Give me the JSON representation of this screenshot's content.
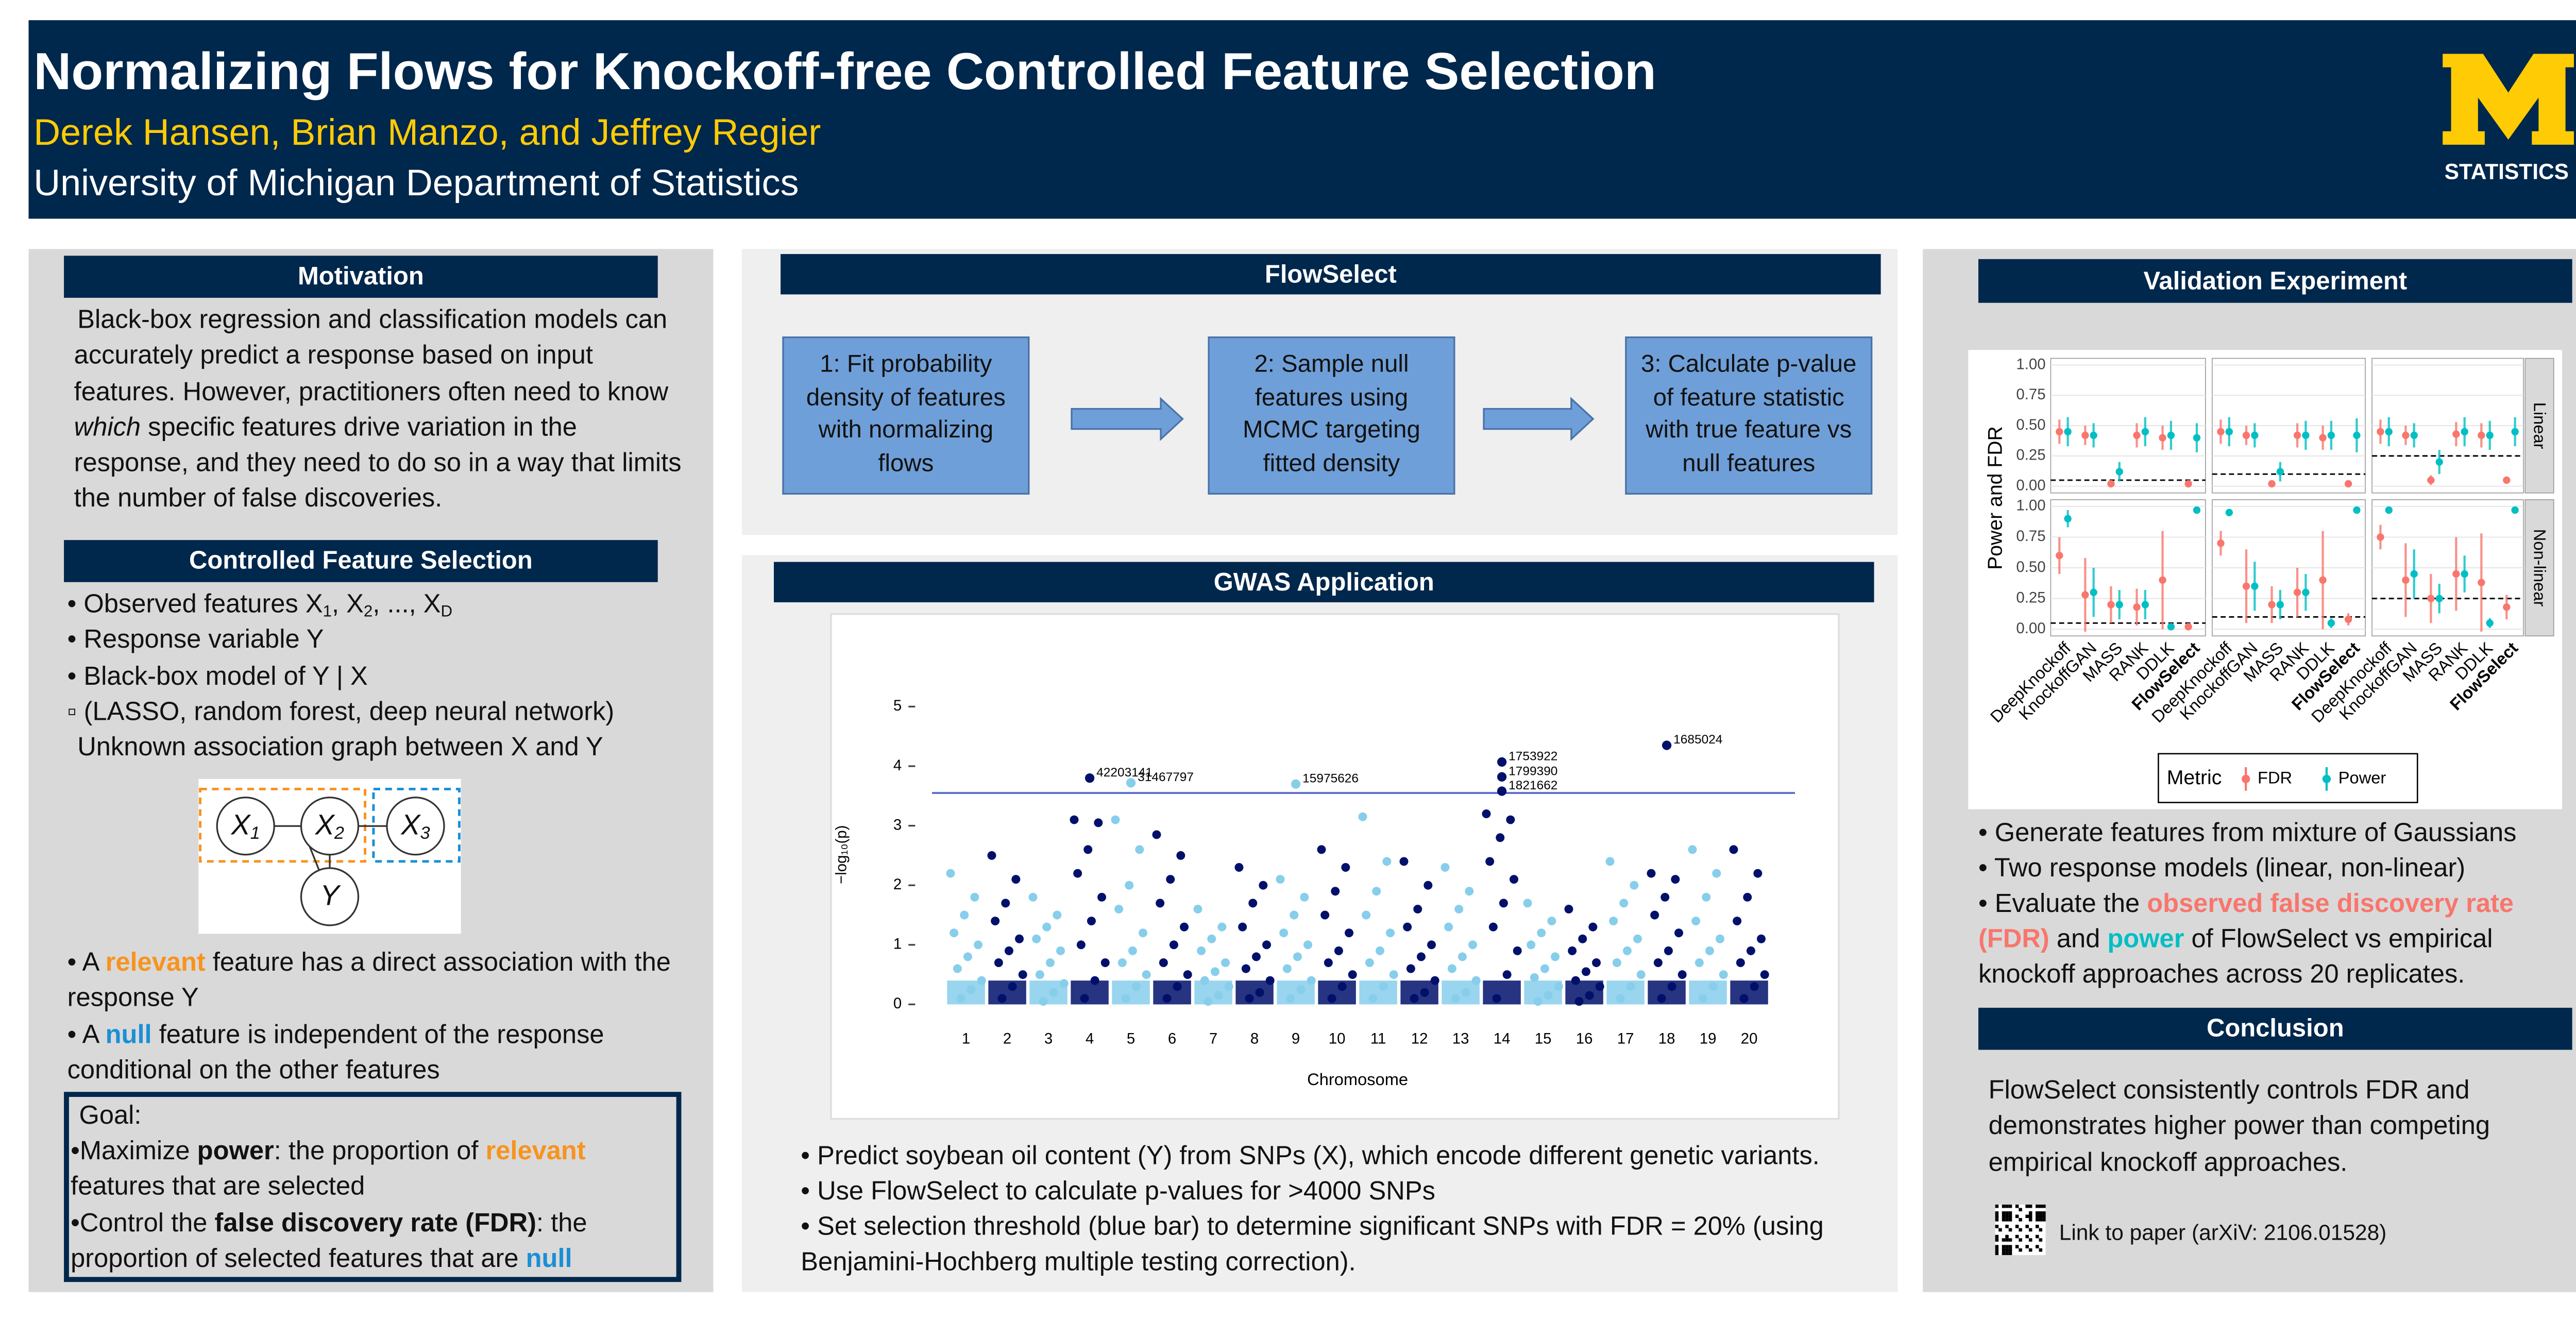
{
  "header": {
    "title": "Normalizing Flows for Knockoff-free Controlled Feature Selection",
    "authors": "Derek Hansen, Brian Manzo, and Jeffrey Regier",
    "affiliation": "University of Michigan Department of Statistics",
    "logo_text": "STATISTICS"
  },
  "motivation": {
    "heading": "Motivation",
    "text": [
      {
        "text": "Black-box regression and classification models can accurately predict a response based on input features. However, practitioners often need to know "
      },
      {
        "text": "which",
        "style": "i"
      },
      {
        "text": " specific features drive variation in the response, and they need to do so in a way that limits the number of false discoveries."
      }
    ]
  },
  "controlled": {
    "heading": "Controlled Feature Selection",
    "items": [
      [
        {
          "text": "• Observed features X"
        },
        {
          "text": "1",
          "style": "sub"
        },
        {
          "text": ", X"
        },
        {
          "text": "2",
          "style": "sub"
        },
        {
          "text": ", ..., X"
        },
        {
          "text": "D",
          "style": "sub"
        }
      ],
      [
        {
          "text": "• Response variable Y"
        }
      ],
      [
        {
          "text": "• Black-box model of Y | X"
        }
      ],
      [
        {
          "text": "▫ (LASSO, random forest, deep neural network)"
        }
      ],
      [
        {
          "text": "Unknown association graph between X and Y"
        }
      ]
    ]
  },
  "diagram": {
    "nodes": [
      [
        {
          "text": "X"
        },
        {
          "text": "1",
          "style": "sub"
        }
      ],
      [
        {
          "text": "X"
        },
        {
          "text": "2",
          "style": "sub"
        }
      ],
      [
        {
          "text": "X"
        },
        {
          "text": "3",
          "style": "sub"
        }
      ],
      [
        {
          "text": "Y"
        }
      ]
    ]
  },
  "relevance": {
    "items": [
      [
        {
          "text": "• A "
        },
        {
          "text": "relevant",
          "style": "orange"
        },
        {
          "text": " feature has a direct association with the response Y"
        }
      ],
      [
        {
          "text": "• A "
        },
        {
          "text": "null",
          "style": "blue"
        },
        {
          "text": " feature is independent of the response conditional on the other features"
        }
      ]
    ]
  },
  "goal": {
    "heading": "Goal:",
    "items": [
      [
        {
          "text": "•Maximize "
        },
        {
          "text": "power",
          "style": "b"
        },
        {
          "text": ": the proportion of "
        },
        {
          "text": "relevant",
          "style": "orange"
        },
        {
          "text": " features that are selected"
        }
      ],
      [
        {
          "text": "•Control the "
        },
        {
          "text": "false discovery rate (FDR)",
          "style": "b"
        },
        {
          "text": ": the proportion of selected features that are "
        },
        {
          "text": "null",
          "style": "blue"
        }
      ]
    ]
  },
  "flowselect": {
    "heading": "FlowSelect",
    "steps": [
      "1: Fit probability density of features with normalizing flows",
      "2: Sample null features using MCMC targeting fitted density",
      "3: Calculate p-value of feature statistic with true feature vs null features"
    ]
  },
  "gwas": {
    "heading": "GWAS Application",
    "plot": {
      "type": "manhattan",
      "ylabel": "−log₁₀(p)",
      "xlabel": "Chromosome",
      "categories": [
        "1",
        "2",
        "3",
        "4",
        "5",
        "6",
        "7",
        "8",
        "9",
        "10",
        "11",
        "12",
        "13",
        "14",
        "15",
        "16",
        "17",
        "18",
        "19",
        "20"
      ],
      "colors": [
        "#87ceeb",
        "#00106b"
      ],
      "threshold": 3.55,
      "threshold_color": "#5b6fd6",
      "ylim": [
        0,
        5
      ],
      "yticks": [
        0,
        1,
        2,
        3,
        4,
        5
      ],
      "values": [
        [
          2.2,
          1.8,
          1.5,
          1.2,
          1.0,
          0.8,
          0.6,
          0.4,
          0.25,
          0.1
        ],
        [
          2.5,
          2.1,
          1.7,
          1.4,
          1.1,
          0.9,
          0.7,
          0.5,
          0.3,
          0.1
        ],
        [
          1.8,
          1.5,
          1.3,
          1.1,
          0.9,
          0.7,
          0.5,
          0.35,
          0.2,
          0.05
        ],
        [
          3.1,
          3.05,
          2.6,
          2.2,
          1.8,
          1.4,
          1.0,
          0.7,
          0.4,
          0.1
        ],
        [
          3.1,
          2.6,
          2.0,
          1.6,
          1.2,
          0.9,
          0.7,
          0.5,
          0.3,
          0.1
        ],
        [
          2.85,
          2.5,
          2.1,
          1.7,
          1.3,
          1.0,
          0.7,
          0.5,
          0.3,
          0.1
        ],
        [
          1.6,
          1.3,
          1.1,
          0.9,
          0.7,
          0.55,
          0.4,
          0.3,
          0.15,
          0.05
        ],
        [
          2.3,
          2.0,
          1.7,
          1.3,
          1.0,
          0.8,
          0.6,
          0.4,
          0.2,
          0.1
        ],
        [
          2.1,
          1.8,
          1.5,
          1.2,
          1.0,
          0.8,
          0.6,
          0.4,
          0.25,
          0.1
        ],
        [
          2.6,
          2.3,
          1.9,
          1.5,
          1.2,
          0.9,
          0.7,
          0.5,
          0.3,
          0.1
        ],
        [
          3.15,
          2.4,
          1.9,
          1.5,
          1.2,
          0.9,
          0.7,
          0.5,
          0.3,
          0.1
        ],
        [
          2.4,
          2.0,
          1.6,
          1.3,
          1.0,
          0.8,
          0.6,
          0.4,
          0.2,
          0.1
        ],
        [
          2.3,
          1.9,
          1.6,
          1.3,
          1.0,
          0.8,
          0.6,
          0.4,
          0.2,
          0.1
        ],
        [
          3.2,
          3.1,
          2.8,
          2.4,
          2.1,
          1.7,
          1.3,
          0.9,
          0.5,
          0.1
        ],
        [
          1.7,
          1.4,
          1.2,
          1.0,
          0.8,
          0.6,
          0.45,
          0.3,
          0.15,
          0.05
        ],
        [
          1.6,
          1.3,
          1.1,
          0.9,
          0.7,
          0.55,
          0.4,
          0.3,
          0.15,
          0.05
        ],
        [
          2.4,
          2.0,
          1.7,
          1.4,
          1.1,
          0.9,
          0.7,
          0.5,
          0.3,
          0.1
        ],
        [
          2.2,
          2.1,
          1.8,
          1.5,
          1.2,
          0.9,
          0.7,
          0.5,
          0.3,
          0.1
        ],
        [
          2.6,
          2.2,
          1.8,
          1.4,
          1.1,
          0.9,
          0.7,
          0.5,
          0.3,
          0.1
        ],
        [
          2.6,
          2.2,
          1.8,
          1.4,
          1.1,
          0.9,
          0.7,
          0.5,
          0.3,
          0.1
        ]
      ],
      "annotations": [
        {
          "label": "42203141",
          "chromosome": "4",
          "value": 3.8
        },
        {
          "label": "31467797",
          "chromosome": "5",
          "value": 3.72
        },
        {
          "label": "15975626",
          "chromosome": "9",
          "value": 3.7
        },
        {
          "label": "1753922",
          "chromosome": "14",
          "value": 4.07
        },
        {
          "label": "1799390",
          "chromosome": "14",
          "value": 3.82
        },
        {
          "label": "1821662",
          "chromosome": "14",
          "value": 3.58
        },
        {
          "label": "1685024",
          "chromosome": "18",
          "value": 4.35
        }
      ]
    },
    "bullets": [
      [
        {
          "text": "• Predict soybean oil content (Y) from SNPs (X), which encode different genetic variants."
        }
      ],
      [
        {
          "text": "• Use FlowSelect to calculate p-values for >4000 SNPs"
        }
      ],
      [
        {
          "text": "• Set selection threshold (blue bar) to determine significant SNPs with FDR = 20% (using Benjamini-Hochberg multiple testing correction)."
        }
      ]
    ]
  },
  "validation": {
    "heading": "Validation Experiment",
    "plot": {
      "type": "dot-errorbar",
      "ylabel": "Power and FDR",
      "methods": [
        "DeepKnockoff",
        "KnockoffGAN",
        "MASS",
        "RANK",
        "DDLK",
        "FlowSelect"
      ],
      "ylim": [
        0,
        1
      ],
      "yticks": [
        {
          "value": 0,
          "label": "0.00"
        },
        {
          "value": 0.25,
          "label": "0.25"
        },
        {
          "value": 0.5,
          "label": "0.50"
        },
        {
          "value": 0.75,
          "label": "0.75"
        },
        {
          "value": 1,
          "label": "1.00"
        }
      ],
      "legend_title": "Metric",
      "metrics": [
        {
          "name": "FDR",
          "color": "#f8766d"
        },
        {
          "name": "Power",
          "color": "#00bfc4"
        }
      ],
      "rows": [
        {
          "label": "Linear",
          "panels": [
            {
              "target": 0.05,
              "fdr": [
                0.45,
                0.42,
                0.02,
                0.42,
                0.4,
                0.02
              ],
              "fdr_err": [
                0.1,
                0.08,
                0.02,
                0.1,
                0.1,
                0.02
              ],
              "power": [
                0.45,
                0.42,
                0.12,
                0.45,
                0.42,
                0.4
              ],
              "power_err": [
                0.12,
                0.1,
                0.08,
                0.12,
                0.12,
                0.12
              ]
            },
            {
              "target": 0.1,
              "fdr": [
                0.45,
                0.42,
                0.02,
                0.42,
                0.4,
                0.02
              ],
              "fdr_err": [
                0.1,
                0.08,
                0.02,
                0.1,
                0.1,
                0.02
              ],
              "power": [
                0.45,
                0.42,
                0.12,
                0.42,
                0.42,
                0.42
              ],
              "power_err": [
                0.12,
                0.1,
                0.08,
                0.12,
                0.12,
                0.14
              ]
            },
            {
              "target": 0.25,
              "fdr": [
                0.45,
                0.42,
                0.05,
                0.43,
                0.42,
                0.05
              ],
              "fdr_err": [
                0.1,
                0.08,
                0.04,
                0.1,
                0.1,
                0.03
              ],
              "power": [
                0.45,
                0.42,
                0.2,
                0.45,
                0.42,
                0.45
              ],
              "power_err": [
                0.12,
                0.1,
                0.1,
                0.12,
                0.12,
                0.12
              ]
            }
          ]
        },
        {
          "label": "Non-linear",
          "panels": [
            {
              "target": 0.05,
              "fdr": [
                0.6,
                0.28,
                0.2,
                0.18,
                0.4,
                0.02
              ],
              "fdr_err": [
                0.15,
                0.3,
                0.15,
                0.15,
                0.4,
                0.02
              ],
              "power": [
                0.9,
                0.3,
                0.2,
                0.2,
                0.02,
                0.97
              ],
              "power_err": [
                0.07,
                0.2,
                0.12,
                0.12,
                0.02,
                0.02
              ]
            },
            {
              "target": 0.1,
              "fdr": [
                0.7,
                0.35,
                0.2,
                0.3,
                0.4,
                0.08
              ],
              "fdr_err": [
                0.1,
                0.3,
                0.15,
                0.2,
                0.4,
                0.05
              ],
              "power": [
                0.95,
                0.35,
                0.2,
                0.3,
                0.05,
                0.97
              ],
              "power_err": [
                0.03,
                0.2,
                0.12,
                0.15,
                0.04,
                0.02
              ]
            },
            {
              "target": 0.25,
              "fdr": [
                0.75,
                0.4,
                0.25,
                0.45,
                0.38,
                0.18
              ],
              "fdr_err": [
                0.1,
                0.3,
                0.2,
                0.3,
                0.4,
                0.1
              ],
              "power": [
                0.97,
                0.45,
                0.25,
                0.45,
                0.05,
                0.97
              ],
              "power_err": [
                0.02,
                0.2,
                0.12,
                0.15,
                0.04,
                0.02
              ]
            }
          ]
        }
      ]
    },
    "bullets": [
      [
        {
          "text": "• Generate features from mixture of Gaussians"
        }
      ],
      [
        {
          "text": "• Two response models (linear, non-linear)"
        }
      ],
      [
        {
          "text": "• Evaluate the "
        },
        {
          "text": "observed false discovery rate (FDR)",
          "style": "fdr"
        },
        {
          "text": " and "
        },
        {
          "text": "power",
          "style": "power"
        },
        {
          "text": " of FlowSelect vs empirical knockoff approaches across 20 replicates."
        }
      ]
    ]
  },
  "conclusion": {
    "heading": "Conclusion",
    "text": "FlowSelect consistently controls FDR and demonstrates higher power than competing empirical knockoff approaches.",
    "link": "Link to paper (arXiV: 2106.01528)"
  }
}
